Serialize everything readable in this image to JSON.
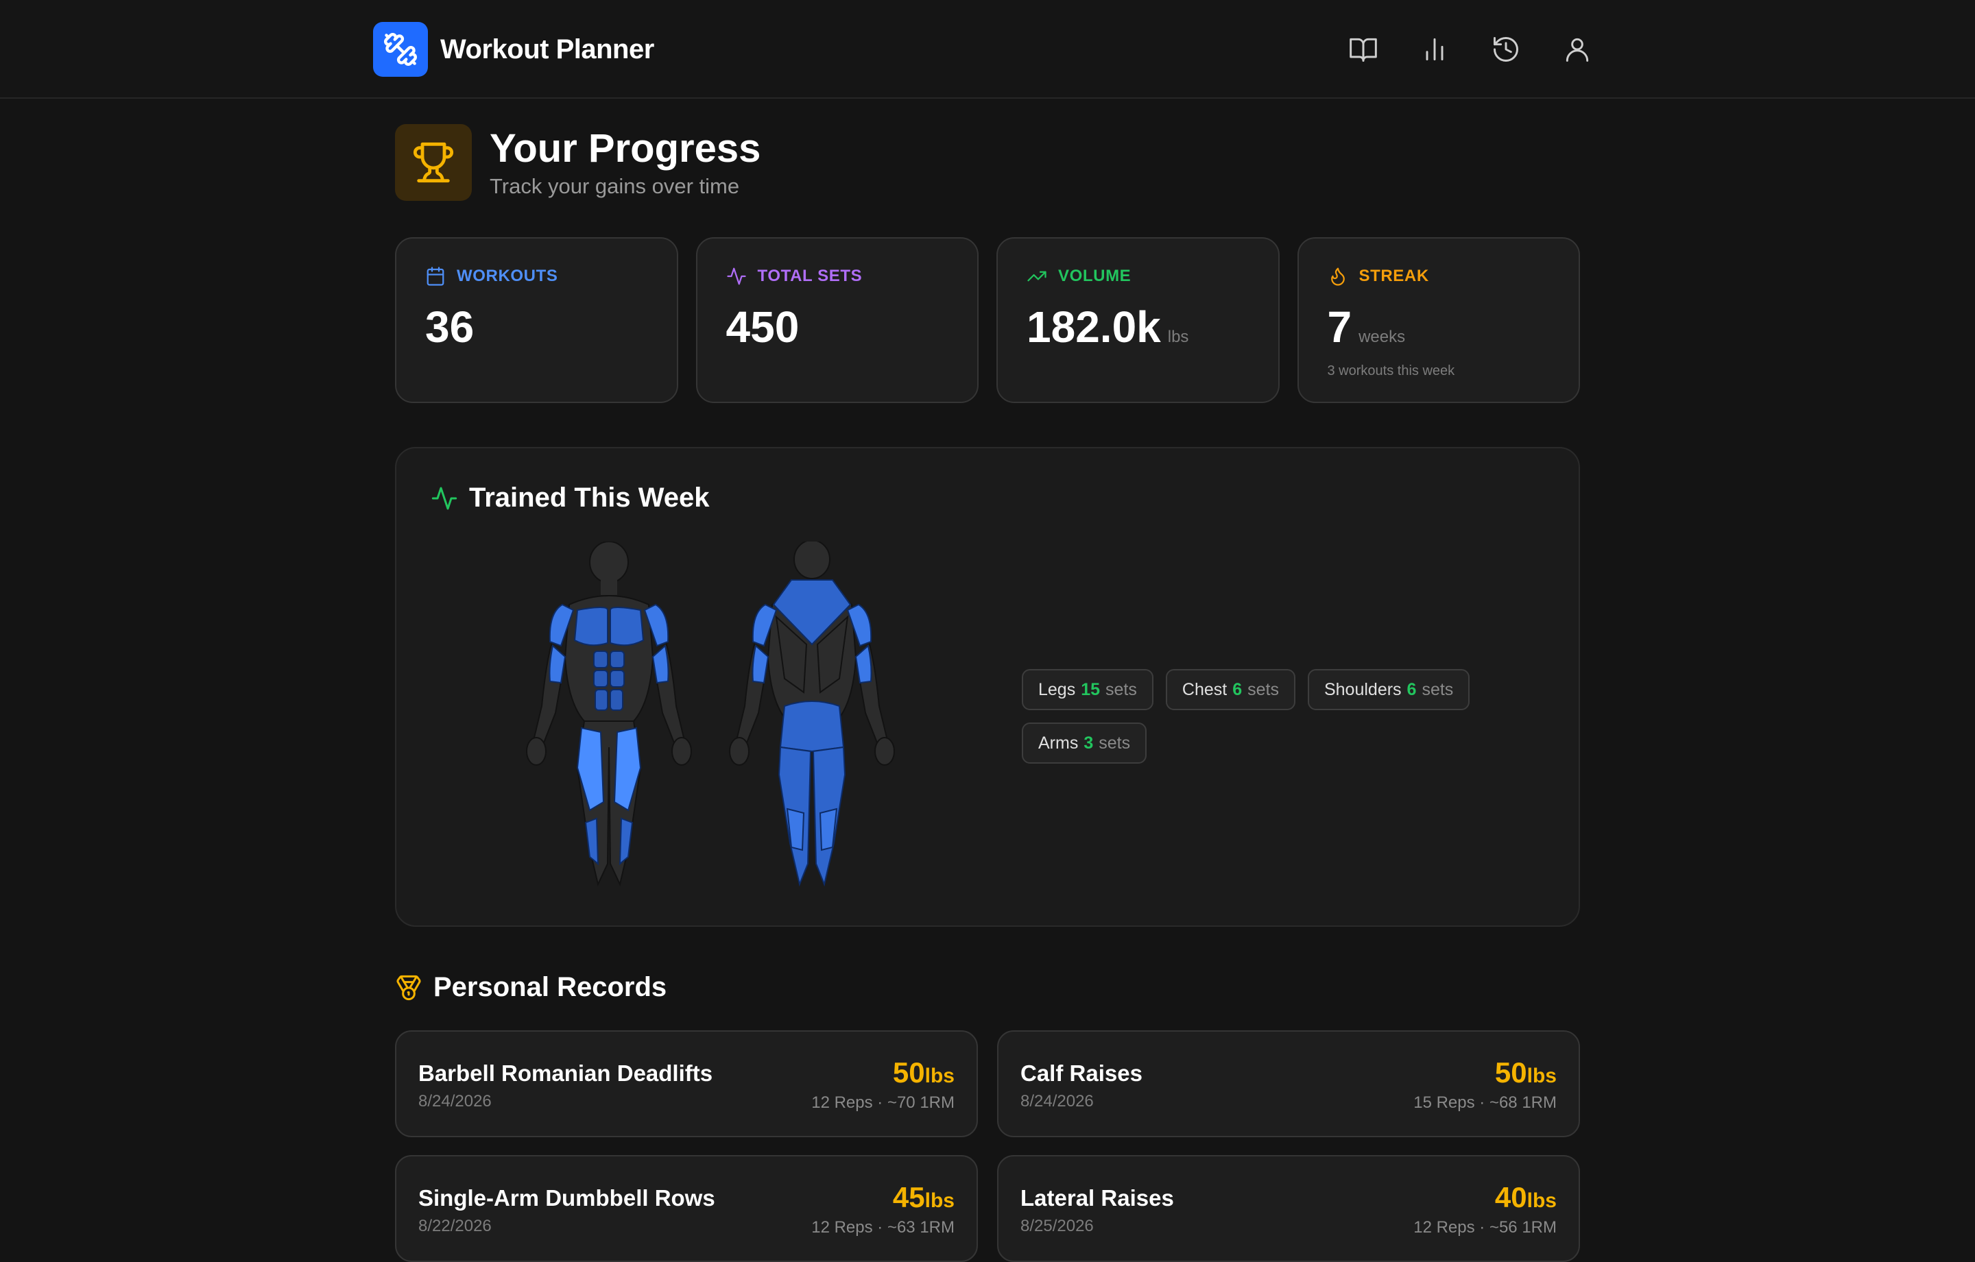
{
  "app": {
    "name": "Workout Planner"
  },
  "nav": {
    "items": [
      "library-icon",
      "stats-icon",
      "history-icon",
      "profile-icon"
    ]
  },
  "page": {
    "title": "Your Progress",
    "subtitle": "Track your gains over time"
  },
  "stats": [
    {
      "label": "WORKOUTS",
      "value": "36",
      "unit": "",
      "note": "",
      "color": "#4f8ff7",
      "icon": "calendar-icon"
    },
    {
      "label": "TOTAL SETS",
      "value": "450",
      "unit": "",
      "note": "",
      "color": "#b06ef7",
      "icon": "activity-icon"
    },
    {
      "label": "VOLUME",
      "value": "182.0k",
      "unit": "lbs",
      "note": "",
      "color": "#22c55e",
      "icon": "trending-up-icon"
    },
    {
      "label": "STREAK",
      "value": "7",
      "unit": "weeks",
      "note": "3 workouts this week",
      "color": "#f59e0b",
      "icon": "flame-icon"
    }
  ],
  "trained": {
    "title": "Trained This Week",
    "chips": [
      {
        "name": "Legs",
        "count": "15",
        "unit": "sets"
      },
      {
        "name": "Chest",
        "count": "6",
        "unit": "sets"
      },
      {
        "name": "Shoulders",
        "count": "6",
        "unit": "sets"
      },
      {
        "name": "Arms",
        "count": "3",
        "unit": "sets"
      }
    ]
  },
  "records": {
    "title": "Personal Records",
    "items": [
      {
        "name": "Barbell Romanian Deadlifts",
        "date": "8/24/2026",
        "weight": "50",
        "unit": "lbs",
        "meta": "12 Reps · ~70 1RM"
      },
      {
        "name": "Calf Raises",
        "date": "8/24/2026",
        "weight": "50",
        "unit": "lbs",
        "meta": "15 Reps · ~68 1RM"
      },
      {
        "name": "Single-Arm Dumbbell Rows",
        "date": "8/22/2026",
        "weight": "45",
        "unit": "lbs",
        "meta": "12 Reps · ~63 1RM"
      },
      {
        "name": "Lateral Raises",
        "date": "8/25/2026",
        "weight": "40",
        "unit": "lbs",
        "meta": "12 Reps · ~56 1RM"
      }
    ]
  },
  "colors": {
    "accent": "#1f6bff",
    "gold": "#f5b300",
    "green": "#22c55e",
    "muscle": "#3b78e7"
  }
}
